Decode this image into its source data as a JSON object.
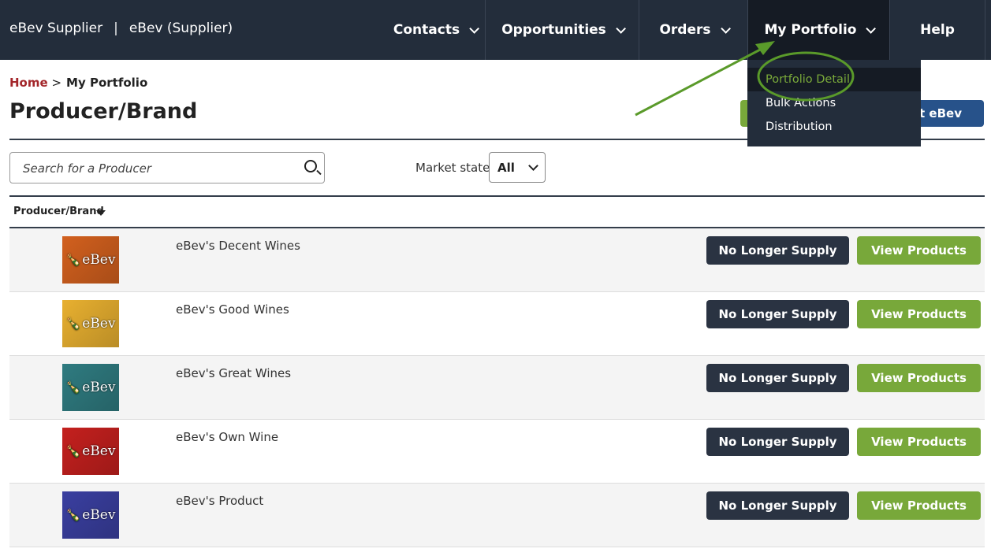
{
  "nav": {
    "brand": "eBev Supplier",
    "account": "eBev (Supplier)",
    "items": [
      {
        "label": "Contacts"
      },
      {
        "label": "Opportunities"
      },
      {
        "label": "Orders"
      },
      {
        "label": "My Portfolio"
      },
      {
        "label": "Help"
      }
    ]
  },
  "dropdown": {
    "items": [
      {
        "label": "Portfolio Detail"
      },
      {
        "label": "Bulk Actions"
      },
      {
        "label": "Distribution"
      }
    ]
  },
  "breadcrumb": {
    "home": "Home",
    "sep": ">",
    "current": "My Portfolio"
  },
  "page": {
    "title": "Producer/Brand",
    "contact_button": "Contact eBev"
  },
  "search": {
    "placeholder": "Search for a Producer"
  },
  "filter": {
    "label": "Market state",
    "value": "All"
  },
  "table": {
    "column": "Producer/Brand",
    "rows": [
      {
        "name": "eBev's Decent Wines",
        "logo_color": "#d2601e"
      },
      {
        "name": "eBev's Good Wines",
        "logo_color": "#e8b030"
      },
      {
        "name": "eBev's Great Wines",
        "logo_color": "#2f7b80"
      },
      {
        "name": "eBev's Own Wine",
        "logo_color": "#c4201e"
      },
      {
        "name": "eBev's Product",
        "logo_color": "#3a3fa0"
      }
    ],
    "logo_text": "eBev",
    "action1": "No Longer Supply",
    "action2": "View Products"
  },
  "colors": {
    "nav": "#232d3b",
    "accent_green": "#78a83a",
    "annotation": "#5a9a2a"
  }
}
